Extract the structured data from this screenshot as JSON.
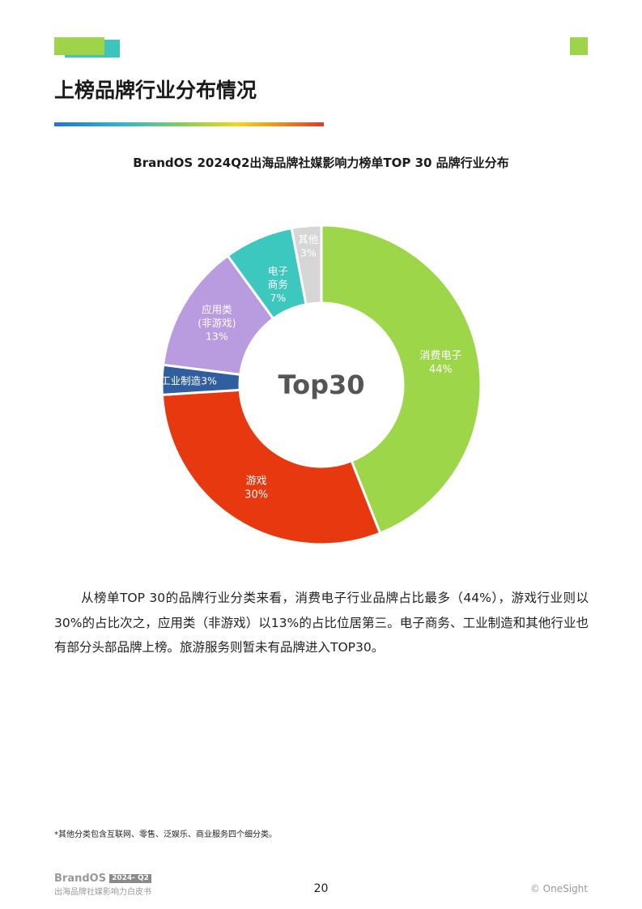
{
  "header": {
    "section_title": "上榜品牌行业分布情况",
    "accent_green": "#9fd44a",
    "accent_teal": "#3cc4bd"
  },
  "chart_data": {
    "type": "pie",
    "title": "BrandOS 2024Q2出海品牌社媒影响力榜单TOP 30 品牌行业分布",
    "center_label": "Top30",
    "slices": [
      {
        "label": "消费电子",
        "value_label": "44%",
        "value": 44,
        "color": "#9ed64a"
      },
      {
        "label": "游戏",
        "value_label": "30%",
        "value": 30,
        "color": "#e8380f"
      },
      {
        "label": "工业制造3%",
        "value_label": "",
        "value": 3,
        "color": "#2f5f9e"
      },
      {
        "label": "应用类\n(非游戏)",
        "value_label": "13%",
        "value": 13,
        "color": "#b99be0"
      },
      {
        "label": "电子\n商务",
        "value_label": "7%",
        "value": 7,
        "color": "#3cc7bf"
      },
      {
        "label": "其他",
        "value_label": "3%",
        "value": 3,
        "color": "#d6d6d6"
      }
    ]
  },
  "body": {
    "paragraph": "从榜单TOP 30的品牌行业分类来看，消费电子行业品牌占比最多（44%），游戏行业则以30%的占比次之，应用类（非游戏）以13%的占比位居第三。电子商务、工业制造和其他行业也有部分头部品牌上榜。旅游服务则暂未有品牌进入TOP30。"
  },
  "footnote": "*其他分类包含互联网、零售、泛娱乐、商业服务四个细分类。",
  "footer": {
    "brand": "BrandOS",
    "badge": "2024- Q2",
    "subtitle": "出海品牌社媒影响力白皮书",
    "page_number": "20",
    "copyright": "© OneSight"
  }
}
